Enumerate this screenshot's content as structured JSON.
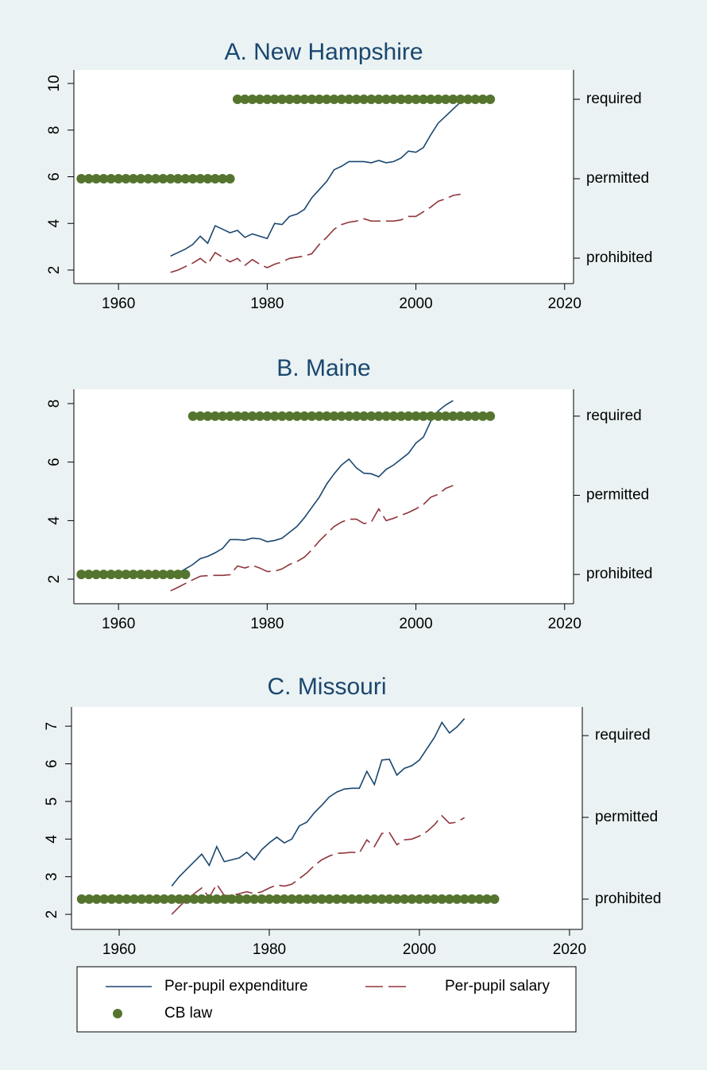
{
  "chart_data": [
    {
      "type": "line",
      "title": "A. New Hampshire",
      "xlim": [
        1954,
        2021.2
      ],
      "xticks": [
        1960,
        1980,
        2000,
        2020
      ],
      "ylim": [
        1.42,
        10.58
      ],
      "yticks": [
        2,
        4,
        6,
        8,
        10
      ],
      "y2lim": [
        -0.32,
        2.37
      ],
      "y2ticks": [
        {
          "value": 0,
          "label": "prohibited"
        },
        {
          "value": 1,
          "label": "permitted"
        },
        {
          "value": 2,
          "label": "required"
        }
      ],
      "series": [
        {
          "name": "Per-pupil expenditure",
          "color": "#1a476f",
          "linestyle": "solid",
          "x": [
            1967,
            1968,
            1969,
            1970,
            1971,
            1972,
            1973,
            1974,
            1975,
            1976,
            1977,
            1978,
            1979,
            1980,
            1981,
            1982,
            1983,
            1984,
            1985,
            1986,
            1987,
            1988,
            1989,
            1990,
            1991,
            1992,
            1993,
            1994,
            1995,
            1996,
            1997,
            1998,
            1999,
            2000,
            2001,
            2002,
            2003,
            2004,
            2005,
            2006
          ],
          "values": [
            2.6,
            2.75,
            2.9,
            3.1,
            3.45,
            3.15,
            3.9,
            3.75,
            3.6,
            3.7,
            3.4,
            3.55,
            3.45,
            3.35,
            4.0,
            3.95,
            4.3,
            4.4,
            4.6,
            5.1,
            5.45,
            5.8,
            6.3,
            6.45,
            6.65,
            6.65,
            6.65,
            6.6,
            6.7,
            6.6,
            6.65,
            6.8,
            7.1,
            7.05,
            7.25,
            7.8,
            8.3,
            8.6,
            8.9,
            9.2
          ]
        },
        {
          "name": "Per-pupil salary",
          "color": "#90353b",
          "linestyle": "dashed",
          "x": [
            1967,
            1968,
            1969,
            1970,
            1971,
            1972,
            1973,
            1974,
            1975,
            1976,
            1977,
            1978,
            1979,
            1980,
            1981,
            1982,
            1983,
            1984,
            1985,
            1986,
            1987,
            1988,
            1989,
            1990,
            1991,
            1992,
            1993,
            1994,
            1995,
            1996,
            1997,
            1998,
            1999,
            2000,
            2001,
            2002,
            2003,
            2004,
            2005,
            2006
          ],
          "values": [
            1.9,
            2.0,
            2.15,
            2.3,
            2.5,
            2.25,
            2.75,
            2.55,
            2.35,
            2.5,
            2.2,
            2.45,
            2.25,
            2.1,
            2.25,
            2.35,
            2.5,
            2.55,
            2.6,
            2.7,
            3.1,
            3.4,
            3.75,
            3.95,
            4.05,
            4.1,
            4.2,
            4.1,
            4.1,
            4.1,
            4.1,
            4.15,
            4.3,
            4.3,
            4.5,
            4.7,
            4.95,
            5.05,
            5.2,
            5.25
          ]
        },
        {
          "name": "CB law",
          "color": "#55752f",
          "type": "scatter",
          "axis": "y2",
          "x": [
            1955,
            1956,
            1957,
            1958,
            1959,
            1960,
            1961,
            1962,
            1963,
            1964,
            1965,
            1966,
            1967,
            1968,
            1969,
            1970,
            1971,
            1972,
            1973,
            1974,
            1975,
            1976,
            1977,
            1978,
            1979,
            1980,
            1981,
            1982,
            1983,
            1984,
            1985,
            1986,
            1987,
            1988,
            1989,
            1990,
            1991,
            1992,
            1993,
            1994,
            1995,
            1996,
            1997,
            1998,
            1999,
            2000,
            2001,
            2002,
            2003,
            2004,
            2005,
            2006,
            2007,
            2008,
            2009,
            2010
          ],
          "values": [
            1,
            1,
            1,
            1,
            1,
            1,
            1,
            1,
            1,
            1,
            1,
            1,
            1,
            1,
            1,
            1,
            1,
            1,
            1,
            1,
            1,
            2,
            2,
            2,
            2,
            2,
            2,
            2,
            2,
            2,
            2,
            2,
            2,
            2,
            2,
            2,
            2,
            2,
            2,
            2,
            2,
            2,
            2,
            2,
            2,
            2,
            2,
            2,
            2,
            2,
            2,
            2,
            2,
            2,
            2,
            2
          ]
        }
      ]
    },
    {
      "type": "line",
      "title": "B. Maine",
      "xlim": [
        1954,
        2021.2
      ],
      "xticks": [
        1960,
        1980,
        2000,
        2020
      ],
      "ylim": [
        1.16,
        8.49
      ],
      "yticks": [
        2,
        4,
        6,
        8
      ],
      "y2lim": [
        -0.37,
        2.34
      ],
      "y2ticks": [
        {
          "value": 0,
          "label": "prohibited"
        },
        {
          "value": 1,
          "label": "permitted"
        },
        {
          "value": 2,
          "label": "required"
        }
      ],
      "series": [
        {
          "color": "#1a476f",
          "linestyle": "solid",
          "x": [
            1967,
            1968,
            1969,
            1970,
            1971,
            1972,
            1973,
            1974,
            1975,
            1976,
            1977,
            1978,
            1979,
            1980,
            1981,
            1982,
            1983,
            1984,
            1985,
            1986,
            1987,
            1988,
            1989,
            1990,
            1991,
            1992,
            1993,
            1994,
            1995,
            1996,
            1997,
            1998,
            1999,
            2000,
            2001,
            2002,
            2003,
            2004,
            2005
          ],
          "values": [
            2.05,
            2.2,
            2.35,
            2.5,
            2.7,
            2.78,
            2.9,
            3.05,
            3.35,
            3.35,
            3.33,
            3.4,
            3.38,
            3.28,
            3.32,
            3.4,
            3.6,
            3.8,
            4.1,
            4.45,
            4.8,
            5.25,
            5.6,
            5.9,
            6.1,
            5.8,
            5.62,
            5.6,
            5.5,
            5.75,
            5.9,
            6.1,
            6.3,
            6.65,
            6.85,
            7.4,
            7.75,
            7.95,
            8.1
          ]
        },
        {
          "color": "#90353b",
          "linestyle": "dashed",
          "x": [
            1967,
            1968,
            1969,
            1970,
            1971,
            1972,
            1973,
            1974,
            1975,
            1976,
            1977,
            1978,
            1979,
            1980,
            1981,
            1982,
            1983,
            1984,
            1985,
            1986,
            1987,
            1988,
            1989,
            1990,
            1991,
            1992,
            1993,
            1994,
            1995,
            1996,
            1997,
            1998,
            1999,
            2000,
            2001,
            2002,
            2003,
            2004,
            2005
          ],
          "values": [
            1.6,
            1.72,
            1.85,
            1.98,
            2.1,
            2.12,
            2.13,
            2.13,
            2.15,
            2.45,
            2.38,
            2.47,
            2.38,
            2.26,
            2.27,
            2.35,
            2.5,
            2.6,
            2.75,
            3.0,
            3.3,
            3.55,
            3.8,
            3.95,
            4.05,
            4.05,
            3.9,
            3.95,
            4.4,
            4.0,
            4.08,
            4.18,
            4.28,
            4.4,
            4.55,
            4.8,
            4.9,
            5.1,
            5.2
          ]
        },
        {
          "color": "#55752f",
          "type": "scatter",
          "axis": "y2",
          "x": [
            1955,
            1956,
            1957,
            1958,
            1959,
            1960,
            1961,
            1962,
            1963,
            1964,
            1965,
            1966,
            1967,
            1968,
            1969,
            1970,
            1971,
            1972,
            1973,
            1974,
            1975,
            1976,
            1977,
            1978,
            1979,
            1980,
            1981,
            1982,
            1983,
            1984,
            1985,
            1986,
            1987,
            1988,
            1989,
            1990,
            1991,
            1992,
            1993,
            1994,
            1995,
            1996,
            1997,
            1998,
            1999,
            2000,
            2001,
            2002,
            2003,
            2004,
            2005,
            2006,
            2007,
            2008,
            2009,
            2010
          ],
          "values": [
            0,
            0,
            0,
            0,
            0,
            0,
            0,
            0,
            0,
            0,
            0,
            0,
            0,
            0,
            0,
            2,
            2,
            2,
            2,
            2,
            2,
            2,
            2,
            2,
            2,
            2,
            2,
            2,
            2,
            2,
            2,
            2,
            2,
            2,
            2,
            2,
            2,
            2,
            2,
            2,
            2,
            2,
            2,
            2,
            2,
            2,
            2,
            2,
            2,
            2,
            2,
            2,
            2,
            2,
            2,
            2
          ]
        }
      ]
    },
    {
      "type": "line",
      "title": "C. Missouri",
      "xlim": [
        1953.65,
        2021.7
      ],
      "xticks": [
        1960,
        1980,
        2000,
        2020
      ],
      "ylim": [
        1.6,
        7.51
      ],
      "yticks": [
        2,
        3,
        4,
        5,
        6,
        7
      ],
      "y2lim": [
        -0.37,
        2.35
      ],
      "y2ticks": [
        {
          "value": 0,
          "label": "prohibited"
        },
        {
          "value": 1,
          "label": "permitted"
        },
        {
          "value": 2,
          "label": "required"
        }
      ],
      "series": [
        {
          "color": "#1a476f",
          "linestyle": "solid",
          "x": [
            1967,
            1968,
            1969,
            1970,
            1971,
            1972,
            1973,
            1974,
            1975,
            1976,
            1977,
            1978,
            1979,
            1980,
            1981,
            1982,
            1983,
            1984,
            1985,
            1986,
            1987,
            1988,
            1989,
            1990,
            1991,
            1992,
            1993,
            1994,
            1995,
            1996,
            1997,
            1998,
            1999,
            2000,
            2001,
            2002,
            2003,
            2004,
            2005,
            2006
          ],
          "values": [
            2.75,
            3.0,
            3.2,
            3.4,
            3.6,
            3.3,
            3.8,
            3.4,
            3.45,
            3.5,
            3.65,
            3.45,
            3.72,
            3.9,
            4.05,
            3.9,
            4.0,
            4.35,
            4.45,
            4.7,
            4.9,
            5.12,
            5.25,
            5.33,
            5.35,
            5.35,
            5.8,
            5.45,
            6.1,
            6.12,
            5.7,
            5.88,
            5.95,
            6.1,
            6.4,
            6.7,
            7.1,
            6.82,
            6.98,
            7.2
          ]
        },
        {
          "color": "#90353b",
          "linestyle": "dashed",
          "x": [
            1967,
            1968,
            1969,
            1970,
            1971,
            1972,
            1973,
            1974,
            1975,
            1976,
            1977,
            1978,
            1979,
            1980,
            1981,
            1982,
            1983,
            1984,
            1985,
            1986,
            1987,
            1988,
            1989,
            1990,
            1991,
            1992,
            1993,
            1994,
            1995,
            1996,
            1997,
            1998,
            1999,
            2000,
            2001,
            2002,
            2003,
            2004,
            2005,
            2006
          ],
          "values": [
            2.0,
            2.2,
            2.4,
            2.55,
            2.7,
            2.45,
            2.8,
            2.5,
            2.5,
            2.55,
            2.6,
            2.55,
            2.6,
            2.7,
            2.78,
            2.75,
            2.8,
            2.95,
            3.1,
            3.3,
            3.45,
            3.55,
            3.62,
            3.63,
            3.65,
            3.63,
            3.98,
            3.8,
            4.15,
            4.17,
            3.85,
            3.98,
            4.0,
            4.08,
            4.2,
            4.38,
            4.62,
            4.42,
            4.45,
            4.57
          ]
        },
        {
          "color": "#55752f",
          "type": "scatter",
          "axis": "y2",
          "x": [
            1955,
            1956,
            1957,
            1958,
            1959,
            1960,
            1961,
            1962,
            1963,
            1964,
            1965,
            1966,
            1967,
            1968,
            1969,
            1970,
            1971,
            1972,
            1973,
            1974,
            1975,
            1976,
            1977,
            1978,
            1979,
            1980,
            1981,
            1982,
            1983,
            1984,
            1985,
            1986,
            1987,
            1988,
            1989,
            1990,
            1991,
            1992,
            1993,
            1994,
            1995,
            1996,
            1997,
            1998,
            1999,
            2000,
            2001,
            2002,
            2003,
            2004,
            2005,
            2006,
            2007,
            2008,
            2009,
            2010
          ],
          "values": [
            0,
            0,
            0,
            0,
            0,
            0,
            0,
            0,
            0,
            0,
            0,
            0,
            0,
            0,
            0,
            0,
            0,
            0,
            0,
            0,
            0,
            0,
            0,
            0,
            0,
            0,
            0,
            0,
            0,
            0,
            0,
            0,
            0,
            0,
            0,
            0,
            0,
            0,
            0,
            0,
            0,
            0,
            0,
            0,
            0,
            0,
            0,
            0,
            0,
            0,
            0,
            0,
            0,
            0,
            0,
            0
          ]
        }
      ]
    }
  ]
}
